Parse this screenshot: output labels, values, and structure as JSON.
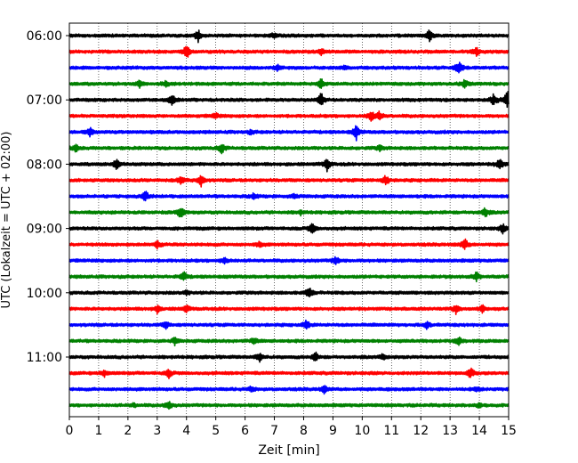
{
  "chart_data": {
    "type": "line",
    "title": "",
    "xlabel": "Zeit  [min]",
    "ylabel": "UTC (Lokalzeit = UTC + 02:00)",
    "xlim": [
      0,
      15
    ],
    "x_ticks": [
      "0",
      "1",
      "2",
      "3",
      "4",
      "5",
      "6",
      "7",
      "8",
      "9",
      "10",
      "11",
      "12",
      "13",
      "14",
      "15"
    ],
    "y_tick_labels": [
      "06:00",
      "07:00",
      "08:00",
      "09:00",
      "10:00",
      "11:00"
    ],
    "grid": "vertical dotted lines at each minute",
    "legend": "none",
    "row_interval_minutes": 15,
    "start_time": "06:00",
    "colors": [
      "#000000",
      "#ff0000",
      "#0000ff",
      "#008000"
    ],
    "traces": [
      {
        "start": "06:00",
        "color": "#000000",
        "events": [
          {
            "x": 4.4,
            "amp": 7
          },
          {
            "x": 12.3,
            "amp": 7
          },
          {
            "x": 7.0,
            "amp": 3
          }
        ]
      },
      {
        "start": "06:15",
        "color": "#ff0000",
        "events": [
          {
            "x": 4.0,
            "amp": 9
          },
          {
            "x": 8.6,
            "amp": 4
          },
          {
            "x": 13.9,
            "amp": 5
          }
        ]
      },
      {
        "start": "06:30",
        "color": "#0000ff",
        "events": [
          {
            "x": 7.1,
            "amp": 3
          },
          {
            "x": 13.3,
            "amp": 8
          },
          {
            "x": 9.4,
            "amp": 2
          }
        ]
      },
      {
        "start": "06:45",
        "color": "#008000",
        "events": [
          {
            "x": 2.4,
            "amp": 4
          },
          {
            "x": 3.3,
            "amp": 4
          },
          {
            "x": 8.6,
            "amp": 7
          },
          {
            "x": 13.5,
            "amp": 5
          }
        ]
      },
      {
        "start": "07:00",
        "color": "#000000",
        "events": [
          {
            "x": 3.5,
            "amp": 8
          },
          {
            "x": 8.6,
            "amp": 8
          },
          {
            "x": 14.5,
            "amp": 7
          },
          {
            "x": 14.95,
            "amp": 12
          }
        ]
      },
      {
        "start": "07:15",
        "color": "#ff0000",
        "events": [
          {
            "x": 10.3,
            "amp": 7
          },
          {
            "x": 10.6,
            "amp": 5
          },
          {
            "x": 5.0,
            "amp": 3
          }
        ]
      },
      {
        "start": "07:30",
        "color": "#0000ff",
        "events": [
          {
            "x": 0.7,
            "amp": 5
          },
          {
            "x": 9.8,
            "amp": 8
          },
          {
            "x": 6.2,
            "amp": 2
          }
        ]
      },
      {
        "start": "07:45",
        "color": "#008000",
        "events": [
          {
            "x": 0.2,
            "amp": 5
          },
          {
            "x": 5.2,
            "amp": 6
          },
          {
            "x": 10.6,
            "amp": 3
          }
        ]
      },
      {
        "start": "08:00",
        "color": "#000000",
        "events": [
          {
            "x": 1.6,
            "amp": 6
          },
          {
            "x": 8.8,
            "amp": 7
          },
          {
            "x": 14.7,
            "amp": 7
          }
        ]
      },
      {
        "start": "08:15",
        "color": "#ff0000",
        "events": [
          {
            "x": 3.8,
            "amp": 5
          },
          {
            "x": 4.5,
            "amp": 7
          },
          {
            "x": 10.8,
            "amp": 6
          }
        ]
      },
      {
        "start": "08:30",
        "color": "#0000ff",
        "events": [
          {
            "x": 2.6,
            "amp": 6
          },
          {
            "x": 6.3,
            "amp": 3
          },
          {
            "x": 7.7,
            "amp": 3
          }
        ]
      },
      {
        "start": "08:45",
        "color": "#008000",
        "events": [
          {
            "x": 3.8,
            "amp": 7
          },
          {
            "x": 14.2,
            "amp": 6
          },
          {
            "x": 7.9,
            "amp": 2
          }
        ]
      },
      {
        "start": "09:00",
        "color": "#000000",
        "events": [
          {
            "x": 8.3,
            "amp": 7
          },
          {
            "x": 14.8,
            "amp": 5
          }
        ]
      },
      {
        "start": "09:15",
        "color": "#ff0000",
        "events": [
          {
            "x": 3.0,
            "amp": 4
          },
          {
            "x": 13.5,
            "amp": 7
          },
          {
            "x": 6.5,
            "amp": 3
          }
        ]
      },
      {
        "start": "09:30",
        "color": "#0000ff",
        "events": [
          {
            "x": 5.3,
            "amp": 4
          },
          {
            "x": 9.1,
            "amp": 5
          }
        ]
      },
      {
        "start": "09:45",
        "color": "#008000",
        "events": [
          {
            "x": 3.9,
            "amp": 6
          },
          {
            "x": 13.9,
            "amp": 5
          }
        ]
      },
      {
        "start": "10:00",
        "color": "#000000",
        "events": [
          {
            "x": 8.2,
            "amp": 7
          },
          {
            "x": 4.0,
            "amp": 2
          }
        ]
      },
      {
        "start": "10:15",
        "color": "#ff0000",
        "events": [
          {
            "x": 3.0,
            "amp": 4
          },
          {
            "x": 4.0,
            "amp": 4
          },
          {
            "x": 13.2,
            "amp": 5
          },
          {
            "x": 14.1,
            "amp": 4
          }
        ]
      },
      {
        "start": "10:30",
        "color": "#0000ff",
        "events": [
          {
            "x": 3.3,
            "amp": 4
          },
          {
            "x": 8.1,
            "amp": 5
          },
          {
            "x": 12.2,
            "amp": 4
          }
        ]
      },
      {
        "start": "10:45",
        "color": "#008000",
        "events": [
          {
            "x": 3.6,
            "amp": 4
          },
          {
            "x": 6.3,
            "amp": 4
          },
          {
            "x": 13.3,
            "amp": 5
          }
        ]
      },
      {
        "start": "11:00",
        "color": "#000000",
        "events": [
          {
            "x": 6.5,
            "amp": 5
          },
          {
            "x": 8.4,
            "amp": 5
          },
          {
            "x": 10.7,
            "amp": 3
          }
        ]
      },
      {
        "start": "11:15",
        "color": "#ff0000",
        "events": [
          {
            "x": 1.2,
            "amp": 4
          },
          {
            "x": 3.4,
            "amp": 5
          },
          {
            "x": 13.7,
            "amp": 6
          }
        ]
      },
      {
        "start": "11:30",
        "color": "#0000ff",
        "events": [
          {
            "x": 6.2,
            "amp": 3
          },
          {
            "x": 8.7,
            "amp": 4
          },
          {
            "x": 13.9,
            "amp": 3
          }
        ]
      },
      {
        "start": "11:45",
        "color": "#008000",
        "events": [
          {
            "x": 3.4,
            "amp": 5
          },
          {
            "x": 2.2,
            "amp": 2
          },
          {
            "x": 14.0,
            "amp": 3
          }
        ]
      }
    ]
  }
}
